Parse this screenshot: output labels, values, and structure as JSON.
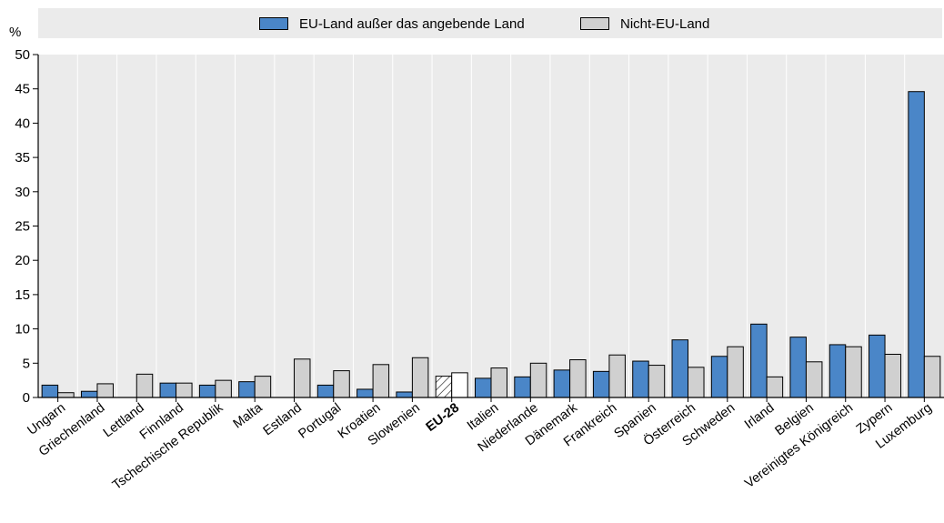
{
  "legend": {
    "series1_label": "EU-Land außer das angebende Land",
    "series2_label": "Nicht-EU-Land"
  },
  "chart_data": {
    "type": "bar",
    "ylabel": "%",
    "ylim": [
      0,
      50
    ],
    "yticks": [
      0,
      5,
      10,
      15,
      20,
      25,
      30,
      35,
      40,
      45,
      50
    ],
    "grid": false,
    "legend_position": "top",
    "highlight_category": "EU-28",
    "categories": [
      "Ungarn",
      "Griechenland",
      "Lettland",
      "Finnland",
      "Tschechische Republik",
      "Malta",
      "Estland",
      "Portugal",
      "Kroatien",
      "Slowenien",
      "EU-28",
      "Italien",
      "Niederlande",
      "Dänemark",
      "Frankreich",
      "Spanien",
      "Österreich",
      "Schweden",
      "Irland",
      "Belgien",
      "Vereinigtes Königreich",
      "Zypern",
      "Luxemburg"
    ],
    "series": [
      {
        "name": "EU-Land außer das angebende Land",
        "color": "#4a86c8",
        "values": [
          1.8,
          0.9,
          null,
          2.1,
          1.8,
          2.3,
          null,
          1.8,
          1.2,
          0.8,
          3.1,
          2.8,
          3.0,
          4.0,
          3.8,
          5.3,
          8.4,
          6.0,
          10.7,
          8.8,
          7.7,
          9.1,
          44.6
        ]
      },
      {
        "name": "Nicht-EU-Land",
        "color": "#d0d0d0",
        "values": [
          0.7,
          2.0,
          3.4,
          2.1,
          2.5,
          3.1,
          5.6,
          3.9,
          4.8,
          5.8,
          3.6,
          4.3,
          5.0,
          5.5,
          6.2,
          4.7,
          4.4,
          7.4,
          3.0,
          5.2,
          7.4,
          6.3,
          6.0
        ]
      }
    ]
  }
}
